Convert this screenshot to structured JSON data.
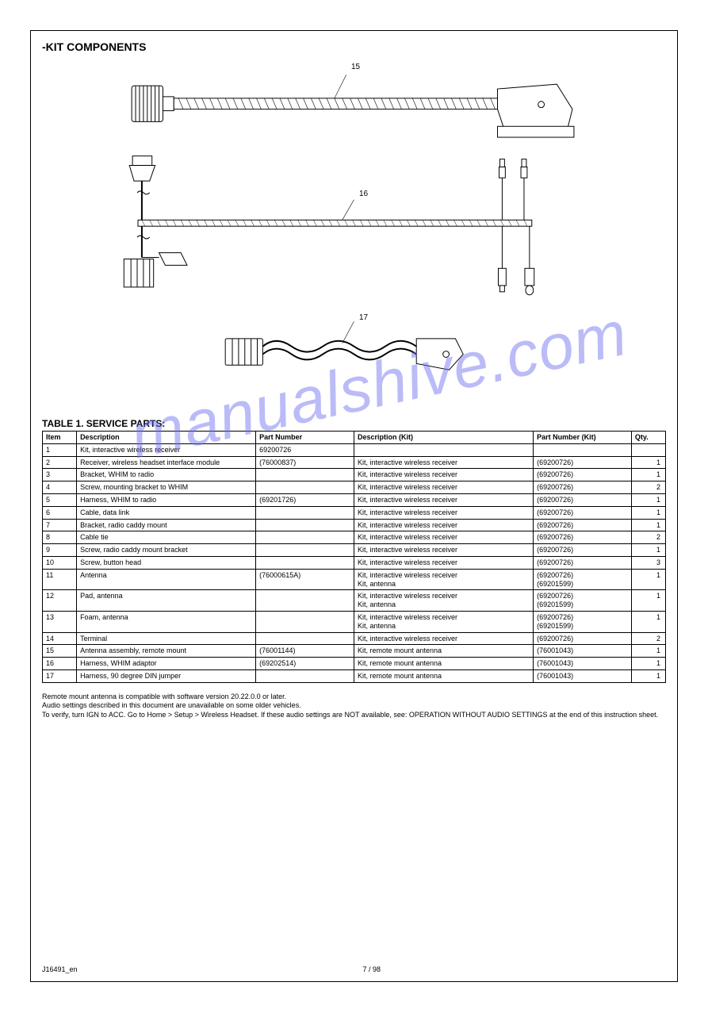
{
  "page": {
    "section_title": "-KIT COMPONENTS",
    "parts_title": "TABLE 1. SERVICE PARTS:",
    "watermark": "manualshive.com",
    "footer_left": "J16491_en",
    "footer_center": "7 / 98"
  },
  "diagrams": {
    "label_15": "15",
    "label_16": "16",
    "label_17": "17"
  },
  "parts_table": {
    "columns": [
      "Item",
      "Description",
      "Part Number",
      "Description (Kit)",
      "Part Number (Kit)",
      "Qty."
    ],
    "rows": [
      {
        "no": "1",
        "part": "Kit, interactive wireless receiver",
        "num": "69200726",
        "pnsuper": "",
        "numsuper": "",
        "qty": ""
      },
      {
        "no": "2",
        "part": "Receiver, wireless headset interface module",
        "num": "(76000837)",
        "pnsuper": "Kit, interactive wireless receiver",
        "numsuper": "(69200726)",
        "qty": "1"
      },
      {
        "no": "3",
        "part": "Bracket, WHIM to radio",
        "num": "",
        "pnsuper": "Kit, interactive wireless receiver",
        "numsuper": "(69200726)",
        "qty": "1"
      },
      {
        "no": "4",
        "part": "Screw, mounting bracket to WHIM",
        "num": "",
        "pnsuper": "Kit, interactive wireless receiver",
        "numsuper": "(69200726)",
        "qty": "2"
      },
      {
        "no": "5",
        "part": "Harness, WHIM to radio",
        "num": "(69201726)",
        "pnsuper": "Kit, interactive wireless receiver",
        "numsuper": "(69200726)",
        "qty": "1"
      },
      {
        "no": "6",
        "part": "Cable, data link",
        "num": "",
        "pnsuper": "Kit, interactive wireless receiver",
        "numsuper": "(69200726)",
        "qty": "1"
      },
      {
        "no": "7",
        "part": "Bracket, radio caddy mount",
        "num": "",
        "pnsuper": "Kit, interactive wireless receiver",
        "numsuper": "(69200726)",
        "qty": "1"
      },
      {
        "no": "8",
        "part": "Cable tie",
        "num": "",
        "pnsuper": "Kit, interactive wireless receiver",
        "numsuper": "(69200726)",
        "qty": "2"
      },
      {
        "no": "9",
        "part": "Screw, radio caddy mount bracket",
        "num": "",
        "pnsuper": "Kit, interactive wireless receiver",
        "numsuper": "(69200726)",
        "qty": "1"
      },
      {
        "no": "10",
        "part": "Screw, button head",
        "num": "",
        "pnsuper": "Kit, interactive wireless receiver",
        "numsuper": "(69200726)",
        "qty": "3"
      },
      {
        "no": "11",
        "part": "Antenna",
        "num": "(76000615A)",
        "pnsuper": "Kit, interactive wireless receiver\nKit, antenna",
        "numsuper": "(69200726)\n(69201599)",
        "qty": "1"
      },
      {
        "no": "12",
        "part": "Pad, antenna",
        "num": "",
        "pnsuper": "Kit, interactive wireless receiver\nKit, antenna",
        "numsuper": "(69200726)\n(69201599)",
        "qty": "1"
      },
      {
        "no": "13",
        "part": "Foam, antenna",
        "num": "",
        "pnsuper": "Kit, interactive wireless receiver\nKit, antenna",
        "numsuper": "(69200726)\n(69201599)",
        "qty": "1"
      },
      {
        "no": "14",
        "part": "Terminal",
        "num": "",
        "pnsuper": "Kit, interactive wireless receiver",
        "numsuper": "(69200726)",
        "qty": "2"
      },
      {
        "no": "15",
        "part": "Antenna assembly, remote mount",
        "num": "(76001144)",
        "pnsuper": "Kit, remote mount antenna",
        "numsuper": "(76001043)",
        "qty": "1"
      },
      {
        "no": "16",
        "part": "Harness, WHIM adaptor",
        "num": "(69202514)",
        "pnsuper": "Kit, remote mount antenna",
        "numsuper": "(76001043)",
        "qty": "1"
      },
      {
        "no": "17",
        "part": "Harness, 90 degree DIN jumper",
        "num": "",
        "pnsuper": "Kit, remote mount antenna",
        "numsuper": "(76001043)",
        "qty": "1"
      }
    ]
  },
  "notes": {
    "line1": "Remote mount antenna is compatible with software version 20.22.0.0 or later.",
    "line2": "Audio settings described in this document are unavailable on some older vehicles.",
    "line2b": "To verify, turn IGN to ACC. Go to Home > Setup > Wireless Headset. If these audio settings are NOT available, see: OPERATION WITHOUT AUDIO SETTINGS at the end of this instruction sheet."
  },
  "svg": {
    "background": "#ffffff",
    "stroke": "#000000",
    "stroke_width": 1
  }
}
